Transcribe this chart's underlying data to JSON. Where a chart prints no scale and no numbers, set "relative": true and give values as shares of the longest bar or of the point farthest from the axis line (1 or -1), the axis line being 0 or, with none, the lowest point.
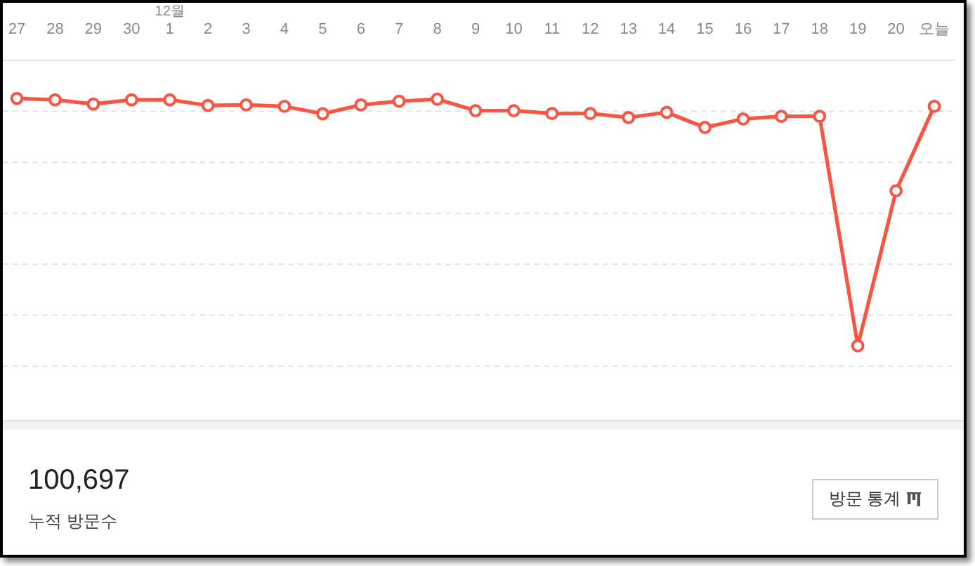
{
  "chart_data": [
    {
      "type": "line",
      "categories": [
        "27",
        "28",
        "29",
        "30",
        "12월\n1",
        "2",
        "3",
        "4",
        "5",
        "6",
        "7",
        "8",
        "9",
        "10",
        "11",
        "12",
        "13",
        "14",
        "15",
        "16",
        "17",
        "18",
        "19",
        "20",
        "오늘"
      ],
      "values": [
        -0.133,
        -0.138,
        -0.153,
        -0.138,
        -0.138,
        -0.158,
        -0.156,
        -0.161,
        -0.187,
        -0.156,
        -0.143,
        -0.136,
        -0.176,
        -0.176,
        -0.186,
        -0.186,
        -0.2,
        -0.182,
        -0.235,
        -0.205,
        -0.196,
        -0.196,
        -1,
        -0.457,
        -0.161
      ],
      "relative": true,
      "color": "#fa5443",
      "marker": "circle",
      "grid": "y"
    },
    {
      "type": "other",
      "title": "누적 방문수",
      "annotations": [
        "100,697",
        "방문 통계"
      ]
    }
  ]
}
